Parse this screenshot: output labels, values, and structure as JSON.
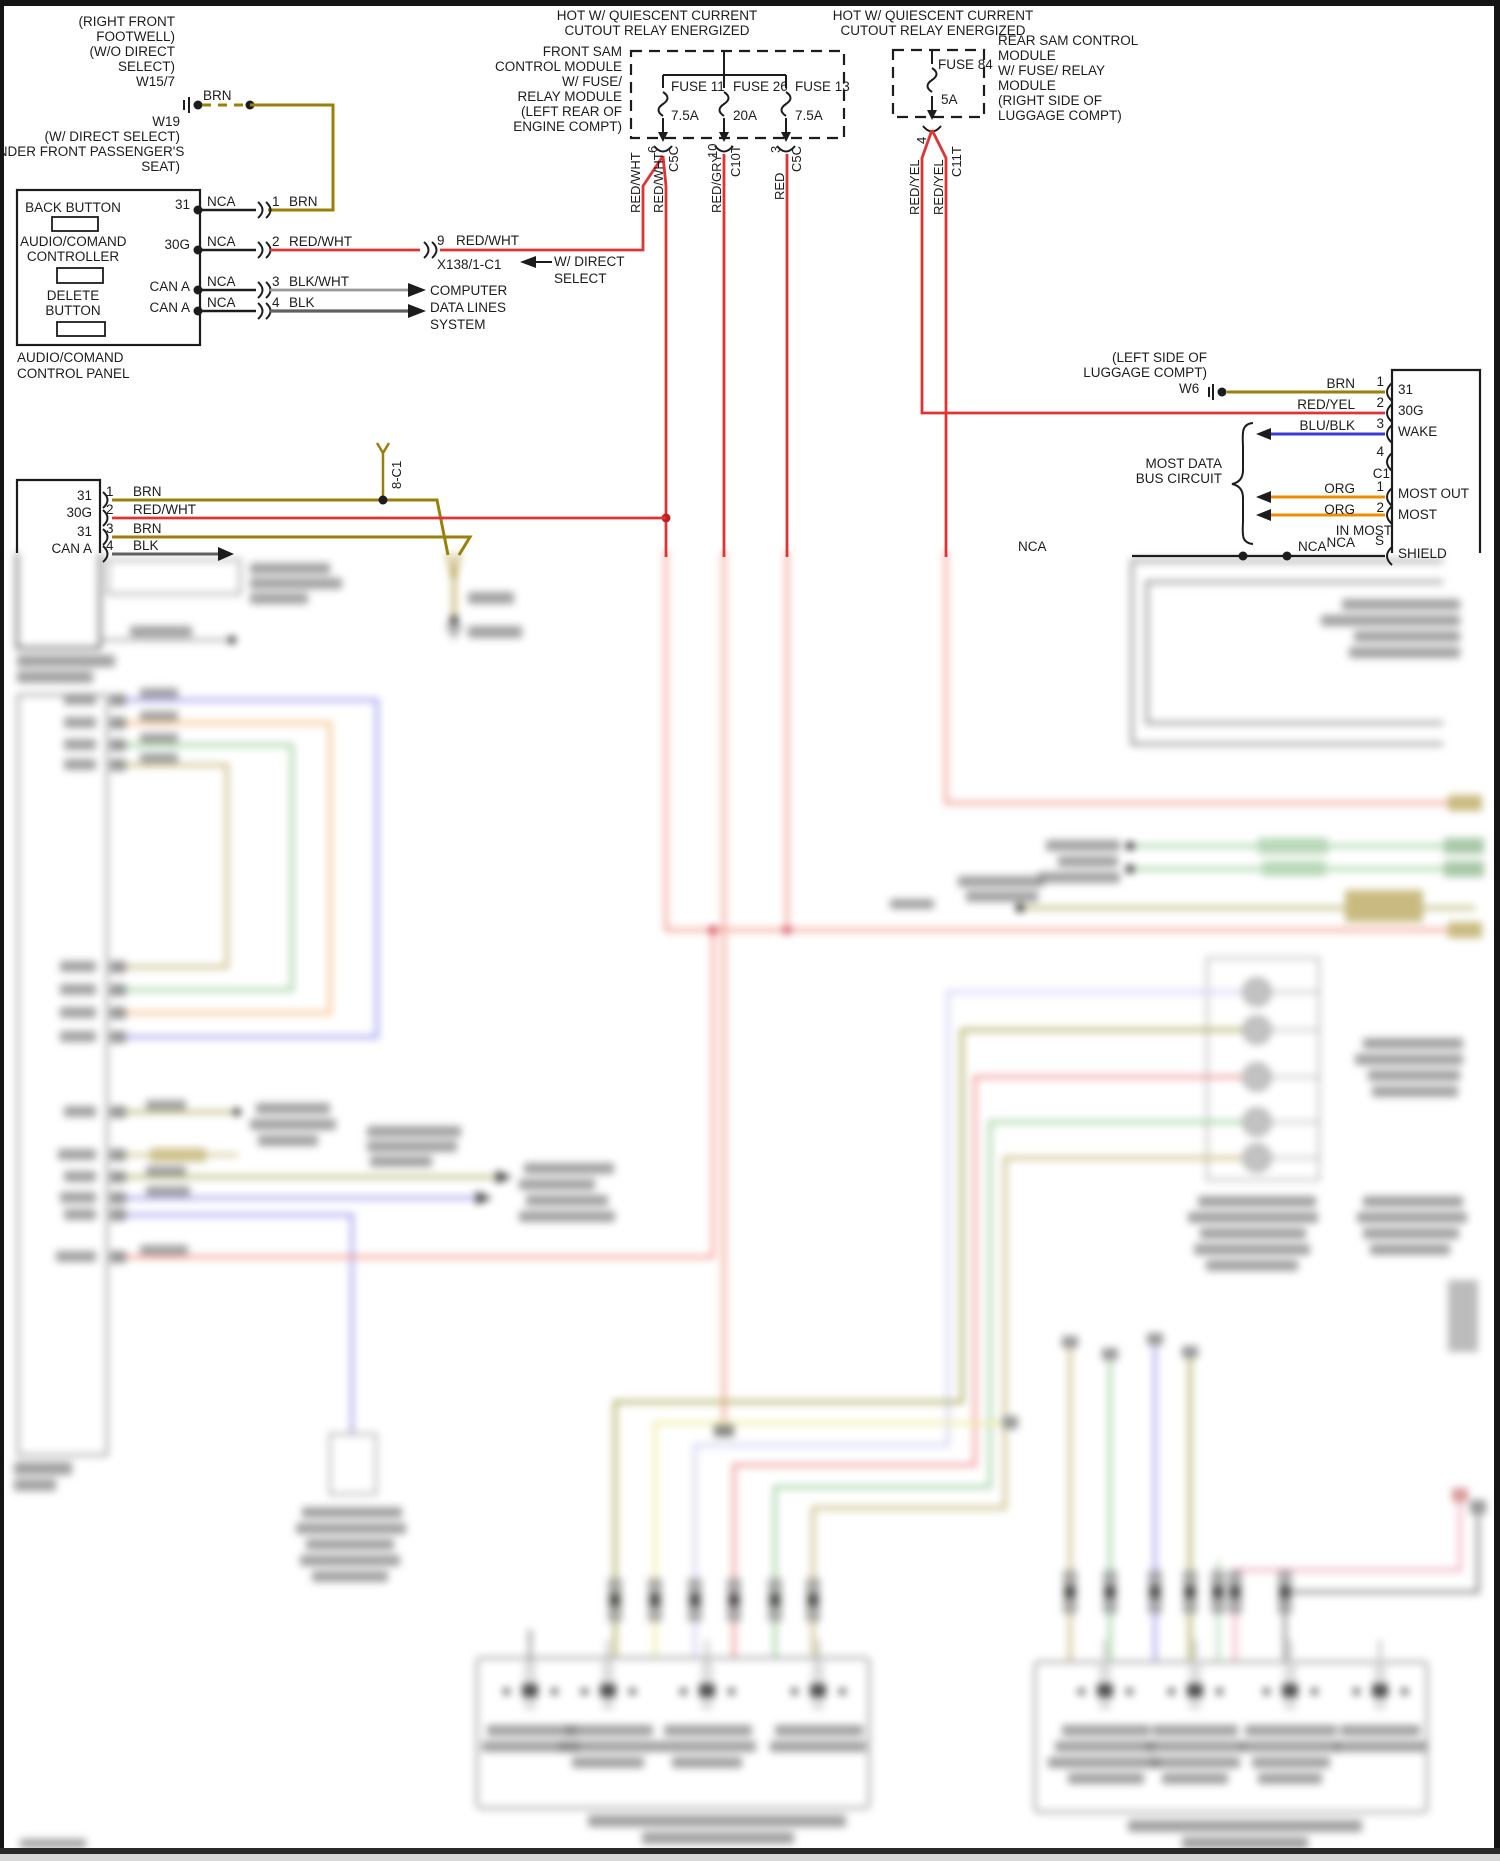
{
  "colors": {
    "line": "#1c1c1c",
    "wire_red": "#e23333",
    "wire_brn": "#9a7f0a",
    "wire_org": "#f08c00",
    "wire_blu": "#3b3bd0",
    "wire_gray": "#9a9a9a",
    "wire_blk": "#606060",
    "b_salmon": "#f09080",
    "b_peri": "#a0a0ec",
    "b_orange": "#f5c08a",
    "b_green": "#a0d0a0",
    "b_tan": "#c9bb80",
    "b_olive": "#adad60",
    "b_yellow": "#ededa0",
    "b_lav": "#d2d2f0",
    "b_pink": "#f0b0c0",
    "b_gray": "#9a9a9a",
    "b_red": "#f09898"
  },
  "w15": {
    "lines": [
      "(RIGHT FRONT",
      "FOOTWELL)",
      "(W/O DIRECT",
      "SELECT)",
      "W15/7"
    ],
    "wire": "BRN"
  },
  "w19": {
    "lines": [
      "W19",
      "(W/ DIRECT SELECT)",
      "UNDER FRONT PASSENGER'S",
      "SEAT)"
    ]
  },
  "audio_panel": {
    "back": "BACK BUTTON",
    "name1": "AUDIO/COMAND",
    "name2": "CONTROLLER",
    "del1": "DELETE",
    "del2": "BUTTON",
    "caption1": "AUDIO/COMAND",
    "caption2": "CONTROL PANEL",
    "rows": [
      {
        "pin": "31",
        "nca": "NCA",
        "num": "1",
        "wire": "BRN"
      },
      {
        "pin": "30G",
        "nca": "NCA",
        "num": "2",
        "wire": "RED/WHT"
      },
      {
        "pin": "CAN A",
        "nca": "NCA",
        "num": "3",
        "wire": "BLK/WHT"
      },
      {
        "pin": "CAN A",
        "nca": "NCA",
        "num": "4",
        "wire": "BLK"
      }
    ]
  },
  "x138": {
    "num": "9",
    "wire": "RED/WHT",
    "name": "X138/1-C1",
    "note1": "W/ DIRECT",
    "note2": "SELECT"
  },
  "computer": {
    "l1": "COMPUTER",
    "l2": "DATA LINES",
    "l3": "SYSTEM"
  },
  "front_sam": {
    "hot1": "HOT W/ QUIESCENT CURRENT",
    "hot2": "CUTOUT RELAY ENERGIZED",
    "name": [
      "FRONT SAM",
      "CONTROL MODULE",
      "W/ FUSE/",
      "RELAY MODULE",
      "(LEFT REAR OF",
      "ENGINE COMPT)"
    ],
    "fuses": [
      {
        "name": "FUSE 11",
        "amp": "7.5A",
        "pin": "6",
        "conn": "C5C"
      },
      {
        "name": "FUSE 26",
        "amp": "20A",
        "pin": "10",
        "conn": "C10T"
      },
      {
        "name": "FUSE 13",
        "amp": "7.5A",
        "pin": "3",
        "conn": "C5C"
      }
    ],
    "wires": [
      "RED/WHT",
      "RED/WHT",
      "RED/GRY",
      "RED"
    ]
  },
  "rear_sam": {
    "hot1": "HOT W/ QUIESCENT CURRENT",
    "hot2": "CUTOUT RELAY ENERGIZED",
    "name": [
      "REAR SAM CONTROL",
      "MODULE",
      "W/ FUSE/ RELAY",
      "MODULE",
      "(RIGHT SIDE OF",
      "LUGGAGE COMPT)"
    ],
    "fuse": {
      "name": "FUSE 84",
      "amp": "5A",
      "pin": "4",
      "conn": "C11T"
    },
    "wires": [
      "RED/YEL",
      "RED/YEL"
    ]
  },
  "left_block": {
    "conn": "8-C1",
    "rows": [
      {
        "pin": "31",
        "num": "1",
        "wire": "BRN"
      },
      {
        "pin": "30G",
        "num": "2",
        "wire": "RED/WHT"
      },
      {
        "pin": "31",
        "num": "3",
        "wire": "BRN"
      },
      {
        "pin": "CAN A",
        "num": "4",
        "wire": "BLK"
      }
    ]
  },
  "most": {
    "loc1": "(LEFT SIDE OF",
    "loc2": "LUGGAGE COMPT)",
    "w6": "W6",
    "bus1": "MOST DATA",
    "bus2": "BUS CIRCUIT",
    "in_most": "IN MOST",
    "c1": "C1",
    "nca_a": "NCA",
    "nca_b": "NCA",
    "rows": [
      {
        "wire": "BRN",
        "num": "1",
        "pin": "31"
      },
      {
        "wire": "RED/YEL",
        "num": "2",
        "pin": "30G"
      },
      {
        "wire": "BLU/BLK",
        "num": "3",
        "pin": "WAKE"
      },
      {
        "wire": "",
        "num": "4",
        "pin": ""
      },
      {
        "wire": "ORG",
        "num": "1",
        "pin": "MOST OUT"
      },
      {
        "wire": "ORG",
        "num": "2",
        "pin": "MOST"
      },
      {
        "wire": "NCA",
        "num": "S",
        "pin": "SHIELD"
      }
    ]
  }
}
